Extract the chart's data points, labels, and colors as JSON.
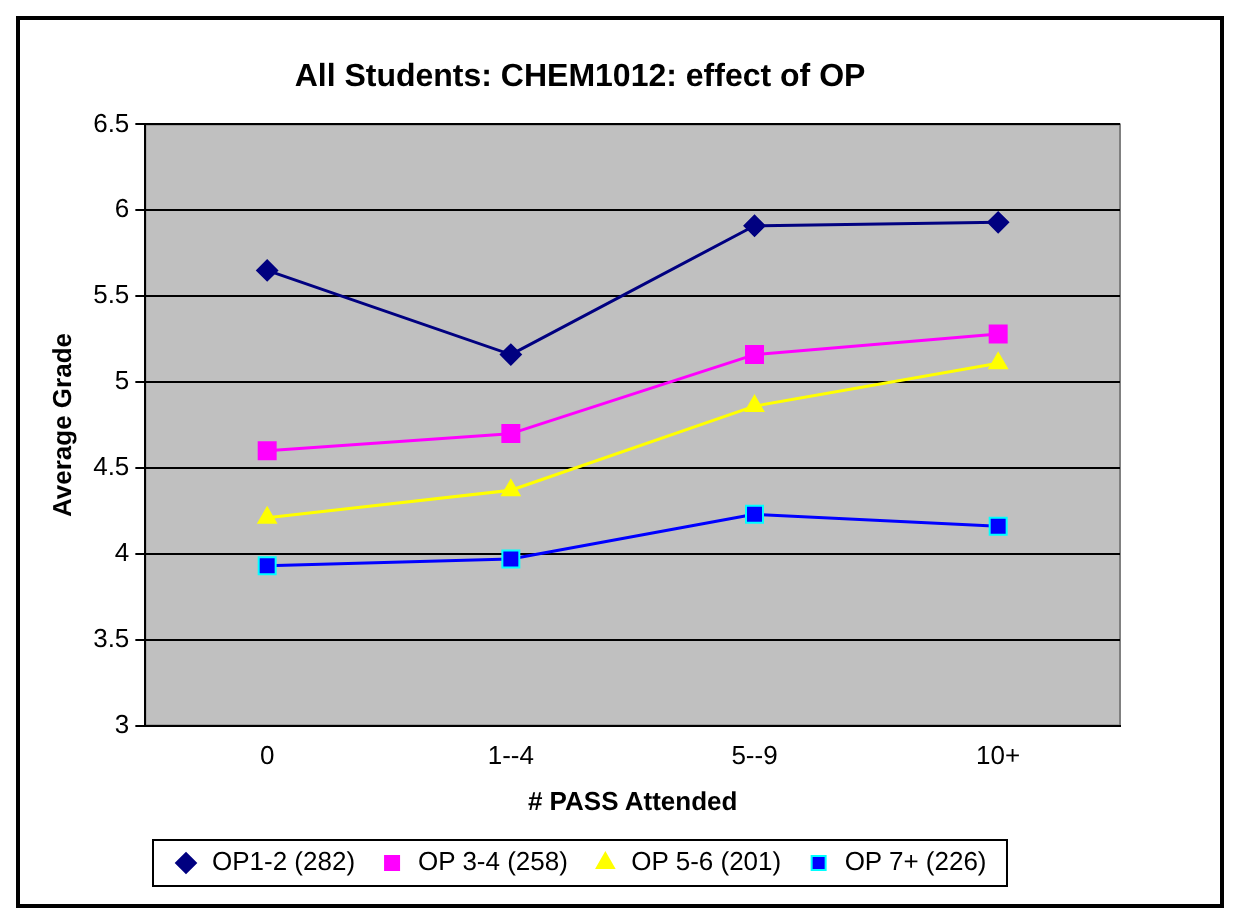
{
  "chart_data": {
    "type": "line",
    "title": "All Students: CHEM1012: effect of OP",
    "xlabel": "# PASS Attended",
    "ylabel": "Average Grade",
    "categories": [
      "0",
      "1--4",
      "5--9",
      "10+"
    ],
    "series": [
      {
        "name": "OP1-2 (282)",
        "color": "#000080",
        "marker": "diamond",
        "values": [
          5.65,
          5.16,
          5.91,
          5.93
        ]
      },
      {
        "name": "OP 3-4 (258)",
        "color": "#ff00ff",
        "marker": "square",
        "values": [
          4.6,
          4.7,
          5.16,
          5.28
        ]
      },
      {
        "name": "OP 5-6 (201)",
        "color": "#ffff00",
        "marker": "triangle",
        "values": [
          4.21,
          4.37,
          4.86,
          5.11
        ]
      },
      {
        "name": "OP 7+ (226)",
        "color": "#0000ff",
        "marker": "square",
        "values": [
          3.93,
          3.97,
          4.23,
          4.16
        ]
      }
    ],
    "ylim": [
      3,
      6.5
    ],
    "yticks": [
      3,
      3.5,
      4,
      4.5,
      5,
      5.5,
      6,
      6.5
    ],
    "grid": "y",
    "legend": "bottom"
  }
}
